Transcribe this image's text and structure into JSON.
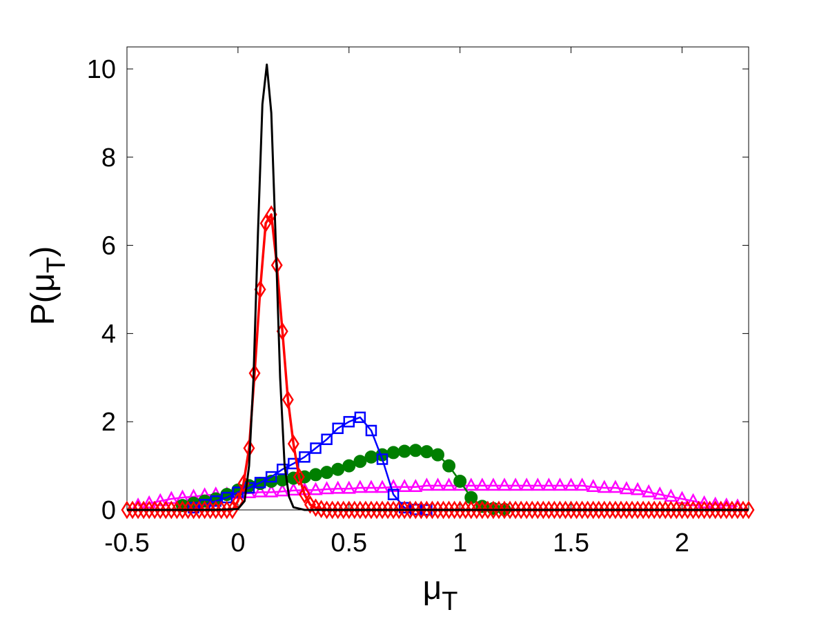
{
  "chart_data": {
    "type": "line",
    "title": "",
    "xlabel_main": "μ",
    "xlabel_sub": "T",
    "ylabel_main": "P(μ",
    "ylabel_sub": "T",
    "ylabel_close": ")",
    "xlim": [
      -0.5,
      2.3
    ],
    "ylim": [
      0,
      10.5
    ],
    "xticks": [
      -0.5,
      0,
      0.5,
      1,
      1.5,
      2
    ],
    "xtick_labels": [
      "-0.5",
      "0",
      "0.5",
      "1",
      "1.5",
      "2"
    ],
    "yticks": [
      0,
      2,
      4,
      6,
      8,
      10
    ],
    "ytick_labels": [
      "0",
      "2",
      "4",
      "6",
      "8",
      "10"
    ],
    "grid": false,
    "series": [
      {
        "marker": "triangle",
        "color": "#ff00ff",
        "x": [
          -0.45,
          -0.4,
          -0.35,
          -0.3,
          -0.25,
          -0.2,
          -0.15,
          -0.1,
          -0.05,
          0.0,
          0.05,
          0.1,
          0.15,
          0.2,
          0.25,
          0.3,
          0.35,
          0.4,
          0.45,
          0.5,
          0.55,
          0.6,
          0.65,
          0.7,
          0.75,
          0.8,
          0.85,
          0.9,
          0.95,
          1.0,
          1.05,
          1.1,
          1.15,
          1.2,
          1.25,
          1.3,
          1.35,
          1.4,
          1.45,
          1.5,
          1.55,
          1.6,
          1.65,
          1.7,
          1.75,
          1.8,
          1.85,
          1.9,
          1.95,
          2.0,
          2.05,
          2.1,
          2.15,
          2.2,
          2.25
        ],
        "y": [
          0.1,
          0.15,
          0.2,
          0.25,
          0.28,
          0.3,
          0.33,
          0.35,
          0.35,
          0.36,
          0.38,
          0.4,
          0.4,
          0.42,
          0.44,
          0.45,
          0.45,
          0.47,
          0.48,
          0.48,
          0.5,
          0.5,
          0.5,
          0.52,
          0.52,
          0.52,
          0.55,
          0.55,
          0.55,
          0.55,
          0.55,
          0.55,
          0.55,
          0.55,
          0.55,
          0.55,
          0.55,
          0.55,
          0.55,
          0.55,
          0.55,
          0.52,
          0.5,
          0.5,
          0.47,
          0.45,
          0.4,
          0.35,
          0.3,
          0.25,
          0.2,
          0.15,
          0.12,
          0.1,
          0.08
        ]
      },
      {
        "marker": "circle",
        "color": "#007f00",
        "x": [
          -0.25,
          -0.2,
          -0.15,
          -0.1,
          -0.05,
          0.0,
          0.05,
          0.1,
          0.15,
          0.2,
          0.25,
          0.3,
          0.35,
          0.4,
          0.45,
          0.5,
          0.55,
          0.6,
          0.65,
          0.7,
          0.75,
          0.8,
          0.85,
          0.9,
          0.95,
          1.0,
          1.05,
          1.1,
          1.15,
          1.2
        ],
        "y": [
          0.1,
          0.15,
          0.2,
          0.25,
          0.35,
          0.45,
          0.55,
          0.6,
          0.65,
          0.68,
          0.72,
          0.75,
          0.8,
          0.85,
          0.92,
          1.0,
          1.1,
          1.2,
          1.25,
          1.3,
          1.33,
          1.35,
          1.32,
          1.25,
          1.0,
          0.65,
          0.28,
          0.08,
          0.03,
          0.01
        ]
      },
      {
        "marker": "square",
        "color": "#0000ff",
        "x": [
          -0.2,
          -0.15,
          -0.1,
          -0.05,
          0.0,
          0.05,
          0.1,
          0.15,
          0.2,
          0.25,
          0.3,
          0.35,
          0.4,
          0.45,
          0.5,
          0.55,
          0.6,
          0.65,
          0.7,
          0.75,
          0.8,
          0.85
        ],
        "y": [
          0.05,
          0.12,
          0.2,
          0.28,
          0.4,
          0.5,
          0.62,
          0.75,
          0.92,
          1.05,
          1.2,
          1.4,
          1.6,
          1.85,
          2.0,
          2.1,
          1.8,
          1.15,
          0.35,
          0.05,
          0.01,
          0.0
        ]
      },
      {
        "marker": "diamond",
        "color": "#ff0000",
        "x": [
          -0.5,
          -0.475,
          -0.45,
          -0.425,
          -0.4,
          -0.375,
          -0.35,
          -0.325,
          -0.3,
          -0.275,
          -0.25,
          -0.225,
          -0.2,
          -0.175,
          -0.15,
          -0.125,
          -0.1,
          -0.075,
          -0.05,
          -0.025,
          0.0,
          0.025,
          0.05,
          0.075,
          0.1,
          0.125,
          0.15,
          0.175,
          0.2,
          0.225,
          0.25,
          0.275,
          0.3,
          0.325,
          0.35,
          0.375,
          0.4,
          0.425,
          0.45,
          0.475,
          0.5,
          0.525,
          0.55,
          0.575,
          0.6,
          0.625,
          0.65,
          0.675,
          0.7,
          0.725,
          0.75,
          0.775,
          0.8,
          0.825,
          0.85,
          0.875,
          0.9,
          0.925,
          0.95,
          0.975,
          1.0,
          1.025,
          1.05,
          1.075,
          1.1,
          1.125,
          1.15,
          1.175,
          1.2,
          1.225,
          1.25,
          1.275,
          1.3,
          1.325,
          1.35,
          1.375,
          1.4,
          1.425,
          1.45,
          1.475,
          1.5,
          1.525,
          1.55,
          1.575,
          1.6,
          1.625,
          1.65,
          1.675,
          1.7,
          1.725,
          1.75,
          1.775,
          1.8,
          1.825,
          1.85,
          1.875,
          1.9,
          1.925,
          1.95,
          1.975,
          2.0,
          2.025,
          2.05,
          2.075,
          2.1,
          2.125,
          2.15,
          2.175,
          2.2,
          2.225,
          2.25,
          2.275,
          2.3
        ],
        "y": [
          0.0,
          0.0,
          0.0,
          0.0,
          0.0,
          0.0,
          0.0,
          0.0,
          0.0,
          0.0,
          0.0,
          0.0,
          0.0,
          0.0,
          0.0,
          0.0,
          0.0,
          0.0,
          0.0,
          0.0,
          0.2,
          0.6,
          1.4,
          3.1,
          5.0,
          6.5,
          6.7,
          5.55,
          4.05,
          2.5,
          1.5,
          0.75,
          0.35,
          0.12,
          0.05,
          0.02,
          0.0,
          0.0,
          0.0,
          0.0,
          0.0,
          0.0,
          0.0,
          0.0,
          0.0,
          0.0,
          0.0,
          0.0,
          0.0,
          0.0,
          0.0,
          0.0,
          0.0,
          0.0,
          0.0,
          0.0,
          0.0,
          0.0,
          0.0,
          0.0,
          0.0,
          0.0,
          0.0,
          0.0,
          0.0,
          0.0,
          0.0,
          0.0,
          0.0,
          0.0,
          0.0,
          0.0,
          0.0,
          0.0,
          0.0,
          0.0,
          0.0,
          0.0,
          0.0,
          0.0,
          0.0,
          0.0,
          0.0,
          0.0,
          0.0,
          0.0,
          0.0,
          0.0,
          0.0,
          0.0,
          0.0,
          0.0,
          0.0,
          0.0,
          0.0,
          0.0,
          0.0,
          0.0,
          0.0,
          0.0,
          0.0,
          0.0,
          0.0,
          0.0,
          0.0,
          0.0,
          0.0,
          0.0,
          0.0,
          0.0,
          0.0,
          0.0,
          0.0
        ]
      },
      {
        "marker": "none",
        "color": "#000000",
        "x": [
          -0.5,
          -0.1,
          0.0,
          0.03,
          0.05,
          0.07,
          0.09,
          0.11,
          0.13,
          0.15,
          0.17,
          0.19,
          0.21,
          0.23,
          0.25,
          0.3,
          0.5,
          2.3
        ],
        "y": [
          0.0,
          0.0,
          0.02,
          0.2,
          1.0,
          3.0,
          6.3,
          9.2,
          10.1,
          9.0,
          6.1,
          3.0,
          1.0,
          0.3,
          0.06,
          0.0,
          0.0,
          0.0
        ]
      }
    ]
  }
}
